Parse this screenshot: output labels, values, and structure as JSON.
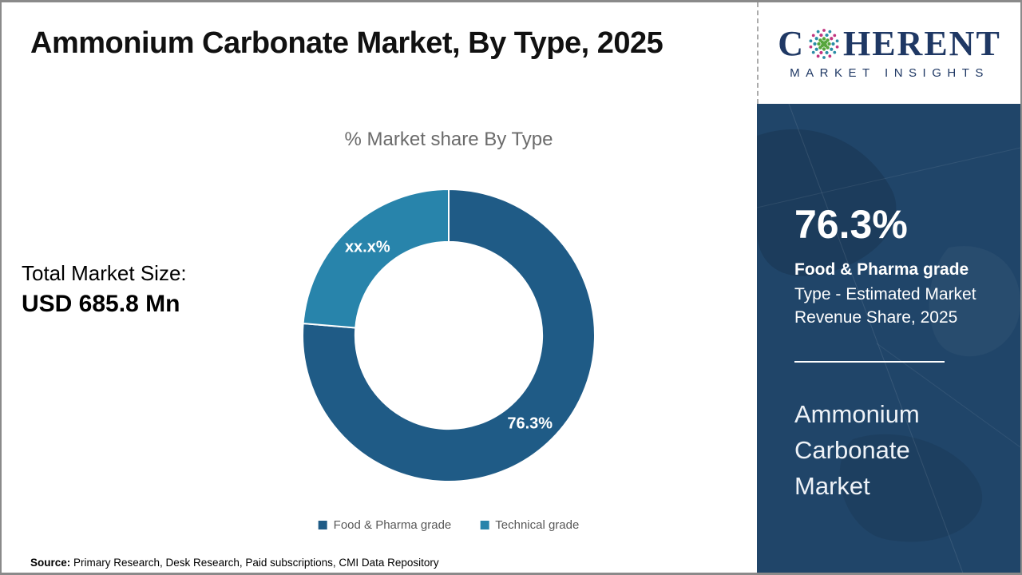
{
  "header": {
    "title": "Ammonium Carbonate Market, By Type, 2025"
  },
  "logo": {
    "brand_c": "C",
    "brand_rest": "HERENT",
    "subtitle": "MARKET INSIGHTS",
    "brand_color": "#1F3864",
    "globe_colors": {
      "outer": "#C13680",
      "mid": "#2B8CA6",
      "inner": "#56A63C"
    }
  },
  "main": {
    "total_label": "Total Market Size:",
    "total_value": "USD 685.8 Mn",
    "source_label": "Source:",
    "source_text": " Primary Research, Desk Research, Paid subscriptions, CMI Data Repository"
  },
  "sidebar": {
    "stat_value": "76.3%",
    "stat_label": "Food & Pharma grade",
    "stat_desc": "Type - Estimated Market Revenue Share, 2025",
    "market_name": "Ammonium Carbonate Market",
    "background_color": "#204569"
  },
  "chart_data": {
    "type": "pie",
    "subtype": "donut",
    "title": "% Market share By Type",
    "categories": [
      "Food & Pharma grade",
      "Technical grade"
    ],
    "values": [
      76.3,
      23.7
    ],
    "labels": [
      "76.3%",
      "xx.x%"
    ],
    "colors": [
      "#1F5B86",
      "#2884AB"
    ],
    "start_angle_deg": 0,
    "direction": "clockwise",
    "inner_radius_ratio": 0.64,
    "legend_position": "bottom",
    "label_color": "#FFFFFF"
  }
}
